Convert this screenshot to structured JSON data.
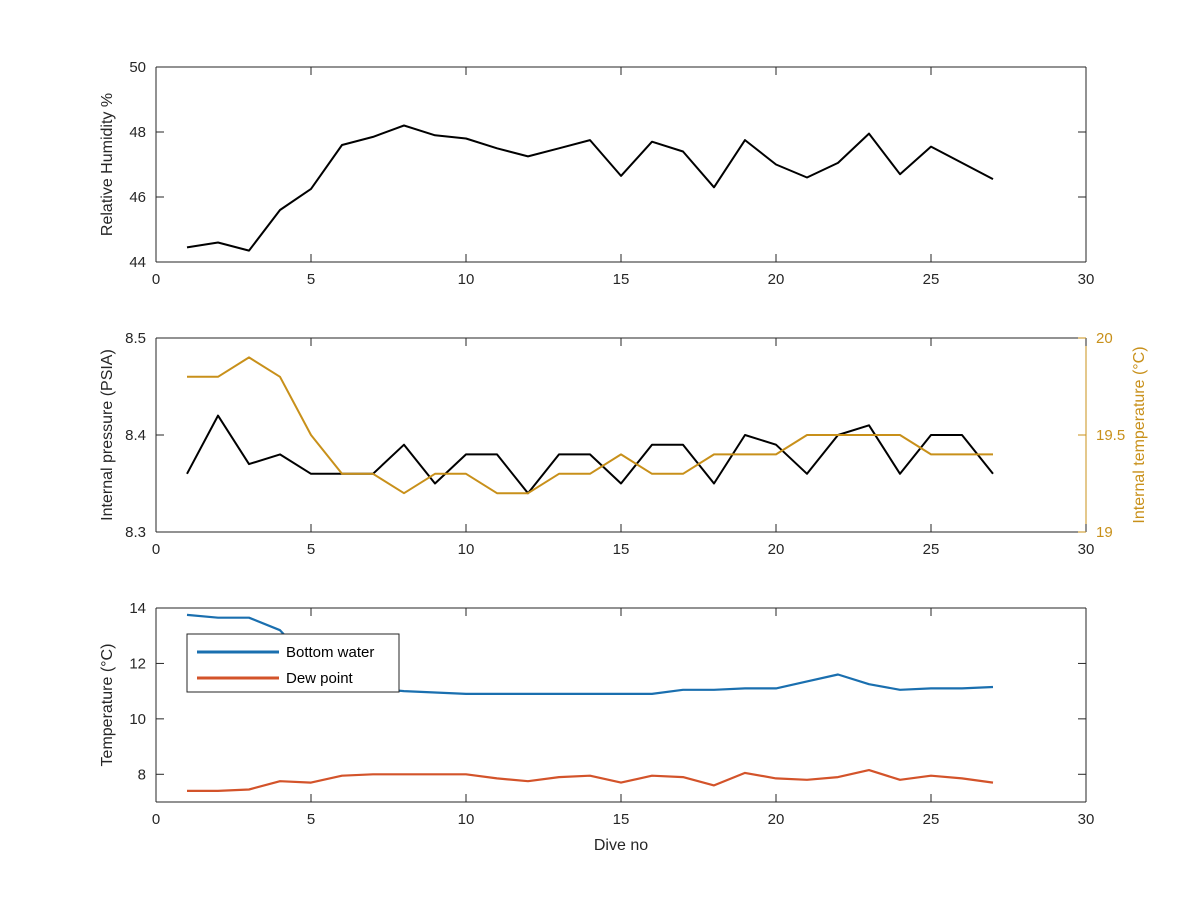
{
  "chart_data": [
    {
      "type": "line",
      "title": "",
      "xlabel": "",
      "ylabel": "Relative Humidity %",
      "xlim": [
        0,
        30
      ],
      "ylim": [
        44,
        50
      ],
      "xticks": [
        0,
        5,
        10,
        15,
        20,
        25,
        30
      ],
      "yticks": [
        44,
        46,
        48,
        50
      ],
      "grid": false,
      "x": [
        1,
        2,
        3,
        4,
        5,
        6,
        7,
        8,
        9,
        10,
        11,
        12,
        13,
        14,
        15,
        16,
        17,
        18,
        19,
        20,
        21,
        22,
        23,
        24,
        25,
        26,
        27
      ],
      "series": [
        {
          "color": "#000000",
          "values": [
            44.45,
            44.6,
            44.35,
            45.6,
            46.25,
            47.6,
            47.85,
            48.2,
            47.9,
            47.8,
            47.5,
            47.25,
            47.5,
            47.75,
            46.65,
            47.7,
            47.4,
            46.3,
            47.75,
            47.0,
            46.6,
            47.05,
            47.95,
            46.7,
            47.55,
            47.05,
            46.55
          ]
        }
      ]
    },
    {
      "type": "line",
      "title": "",
      "xlabel": "",
      "ylabel": "Internal pressure (PSIA)",
      "ylabel_right": "Internal temperature (°C)",
      "xlim": [
        0,
        30
      ],
      "ylim": [
        8.3,
        8.5
      ],
      "ylim_right": [
        19,
        20
      ],
      "xticks": [
        0,
        5,
        10,
        15,
        20,
        25,
        30
      ],
      "yticks": [
        "8.3",
        "8.4",
        "8.5"
      ],
      "yticks_right": [
        "19",
        "19.5",
        "20"
      ],
      "grid": false,
      "x": [
        1,
        2,
        3,
        4,
        5,
        6,
        7,
        8,
        9,
        10,
        11,
        12,
        13,
        14,
        15,
        16,
        17,
        18,
        19,
        20,
        21,
        22,
        23,
        24,
        25,
        26,
        27
      ],
      "series": [
        {
          "axis": "left",
          "color": "#000000",
          "values": [
            8.36,
            8.42,
            8.37,
            8.38,
            8.36,
            8.36,
            8.36,
            8.39,
            8.35,
            8.38,
            8.38,
            8.34,
            8.38,
            8.38,
            8.35,
            8.39,
            8.39,
            8.35,
            8.4,
            8.39,
            8.36,
            8.4,
            8.41,
            8.36,
            8.4,
            8.4,
            8.36
          ]
        },
        {
          "axis": "right",
          "color": "#c8901a",
          "values": [
            19.8,
            19.8,
            19.9,
            19.8,
            19.5,
            19.3,
            19.3,
            19.2,
            19.3,
            19.3,
            19.2,
            19.2,
            19.3,
            19.3,
            19.4,
            19.3,
            19.3,
            19.4,
            19.4,
            19.4,
            19.5,
            19.5,
            19.5,
            19.5,
            19.4,
            19.4,
            19.4
          ]
        }
      ]
    },
    {
      "type": "line",
      "title": "",
      "xlabel": "Dive no",
      "ylabel": "Temperature (°C)",
      "xlim": [
        0,
        30
      ],
      "ylim": [
        7,
        14
      ],
      "xticks": [
        0,
        5,
        10,
        15,
        20,
        25,
        30
      ],
      "yticks": [
        8,
        10,
        12,
        14
      ],
      "grid": false,
      "legend": "top-left",
      "x": [
        1,
        2,
        3,
        4,
        5,
        6,
        7,
        8,
        9,
        10,
        11,
        12,
        13,
        14,
        15,
        16,
        17,
        18,
        19,
        20,
        21,
        22,
        23,
        24,
        25,
        26,
        27
      ],
      "series": [
        {
          "name": "Bottom water",
          "color": "#1a6faf",
          "values": [
            13.75,
            13.65,
            13.65,
            13.2,
            12.0,
            11.3,
            11.1,
            11.0,
            10.95,
            10.9,
            10.9,
            10.9,
            10.9,
            10.9,
            10.9,
            10.9,
            11.05,
            11.05,
            11.1,
            11.1,
            11.35,
            11.6,
            11.25,
            11.05,
            11.1,
            11.1,
            11.15
          ]
        },
        {
          "name": "Dew point",
          "color": "#d3532a",
          "values": [
            7.4,
            7.4,
            7.45,
            7.75,
            7.7,
            7.95,
            8.0,
            8.0,
            8.0,
            8.0,
            7.85,
            7.75,
            7.9,
            7.95,
            7.7,
            7.95,
            7.9,
            7.6,
            8.05,
            7.85,
            7.8,
            7.9,
            8.15,
            7.8,
            7.95,
            7.85,
            7.7
          ]
        }
      ]
    }
  ]
}
